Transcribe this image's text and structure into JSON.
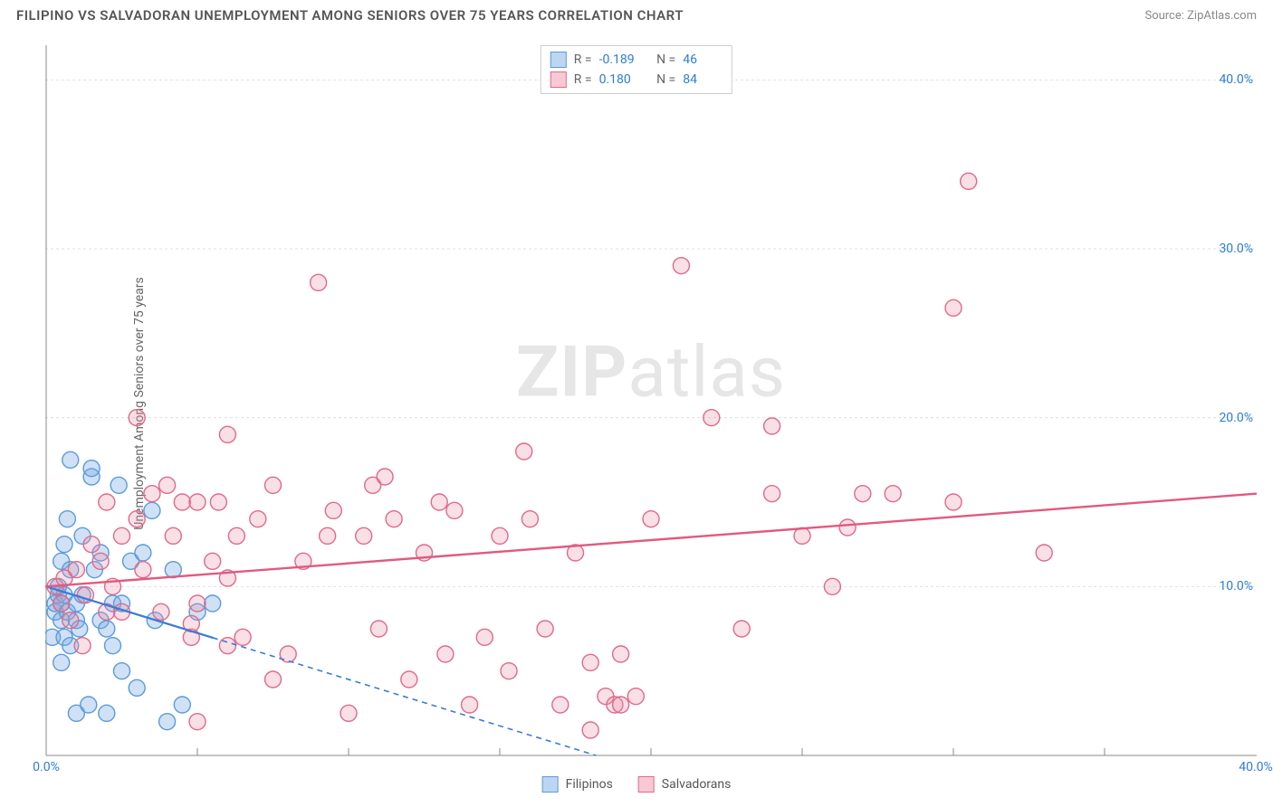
{
  "header": {
    "title": "FILIPINO VS SALVADORAN UNEMPLOYMENT AMONG SENIORS OVER 75 YEARS CORRELATION CHART",
    "source_prefix": "Source: ",
    "source_name": "ZipAtlas.com"
  },
  "axes": {
    "y_label": "Unemployment Among Seniors over 75 years",
    "x_min": 0,
    "x_max": 40,
    "y_min": 0,
    "y_max": 42,
    "x_ticks": [
      0,
      40
    ],
    "x_tick_labels": [
      "0.0%",
      "40.0%"
    ],
    "x_minor_ticks": [
      5,
      10,
      15,
      20,
      25,
      30,
      35
    ],
    "y_ticks": [
      10,
      20,
      30,
      40
    ],
    "y_tick_labels": [
      "10.0%",
      "20.0%",
      "30.0%",
      "40.0%"
    ],
    "grid_color": "#e0e0e0",
    "axis_color": "#888888",
    "tick_label_color": "#2e7cd6",
    "label_fontsize": 14
  },
  "watermark": {
    "text_bold": "ZIP",
    "text_light": "atlas"
  },
  "stats_legend": {
    "rows": [
      {
        "swatch_fill": "#bcd6f2",
        "swatch_stroke": "#5a9bdc",
        "r_label": "R =",
        "r": "-0.189",
        "n_label": "N =",
        "n": "46"
      },
      {
        "swatch_fill": "#f8c9d4",
        "swatch_stroke": "#e06a8a",
        "r_label": "R =",
        "r": "0.180",
        "n_label": "N =",
        "n": "84"
      }
    ]
  },
  "series_legend": {
    "items": [
      {
        "swatch_fill": "#bcd6f2",
        "swatch_stroke": "#5a9bdc",
        "label": "Filipinos"
      },
      {
        "swatch_fill": "#f8c9d4",
        "swatch_stroke": "#e06a8a",
        "label": "Salvadorans"
      }
    ]
  },
  "chart": {
    "type": "scatter",
    "background_color": "#ffffff",
    "marker_radius": 9,
    "marker_stroke_width": 1.4,
    "series": [
      {
        "name": "Filipinos",
        "fill": "rgba(120,170,225,0.35)",
        "stroke": "#5a9bdc",
        "points": [
          [
            0.2,
            7.0
          ],
          [
            0.3,
            8.5
          ],
          [
            0.3,
            9.0
          ],
          [
            0.4,
            9.5
          ],
          [
            0.4,
            10.0
          ],
          [
            0.5,
            5.5
          ],
          [
            0.5,
            8.0
          ],
          [
            0.5,
            9.0
          ],
          [
            0.5,
            11.5
          ],
          [
            0.6,
            7.0
          ],
          [
            0.6,
            9.5
          ],
          [
            0.6,
            12.5
          ],
          [
            0.7,
            14.0
          ],
          [
            0.7,
            8.5
          ],
          [
            0.8,
            17.5
          ],
          [
            0.8,
            11.0
          ],
          [
            0.8,
            6.5
          ],
          [
            1.0,
            2.5
          ],
          [
            1.0,
            9.0
          ],
          [
            1.0,
            8.0
          ],
          [
            1.1,
            7.5
          ],
          [
            1.2,
            13.0
          ],
          [
            1.2,
            9.5
          ],
          [
            1.4,
            3.0
          ],
          [
            1.5,
            16.5
          ],
          [
            1.5,
            17.0
          ],
          [
            1.6,
            11.0
          ],
          [
            1.8,
            8.0
          ],
          [
            1.8,
            12.0
          ],
          [
            2.0,
            7.5
          ],
          [
            2.2,
            6.5
          ],
          [
            2.2,
            9.0
          ],
          [
            2.4,
            16.0
          ],
          [
            2.5,
            9.0
          ],
          [
            2.5,
            5.0
          ],
          [
            2.8,
            11.5
          ],
          [
            3.0,
            4.0
          ],
          [
            3.2,
            12.0
          ],
          [
            3.5,
            14.5
          ],
          [
            3.6,
            8.0
          ],
          [
            4.0,
            2.0
          ],
          [
            4.2,
            11.0
          ],
          [
            4.5,
            3.0
          ],
          [
            5.0,
            8.5
          ],
          [
            5.5,
            9.0
          ],
          [
            2.0,
            2.5
          ]
        ],
        "trend": {
          "y_at_x0": 10.0,
          "y_at_xmax": -12.0,
          "solid_until_x": 5.5,
          "color": "#3a7bd5",
          "width": 2.2,
          "dash": "6,5"
        }
      },
      {
        "name": "Salvadorans",
        "fill": "rgba(235,140,165,0.28)",
        "stroke": "#e06a8a",
        "points": [
          [
            0.3,
            10.0
          ],
          [
            0.5,
            9.0
          ],
          [
            0.6,
            10.5
          ],
          [
            0.8,
            8.0
          ],
          [
            1.0,
            11.0
          ],
          [
            1.2,
            6.5
          ],
          [
            1.3,
            9.5
          ],
          [
            1.5,
            12.5
          ],
          [
            1.8,
            11.5
          ],
          [
            2.0,
            15.0
          ],
          [
            2.2,
            10.0
          ],
          [
            2.5,
            8.5
          ],
          [
            2.5,
            13.0
          ],
          [
            3.0,
            20.0
          ],
          [
            3.2,
            11.0
          ],
          [
            3.5,
            15.5
          ],
          [
            3.8,
            8.5
          ],
          [
            4.0,
            16.0
          ],
          [
            4.2,
            13.0
          ],
          [
            4.5,
            15.0
          ],
          [
            4.8,
            7.0
          ],
          [
            5.0,
            2.0
          ],
          [
            5.0,
            9.0
          ],
          [
            5.0,
            15.0
          ],
          [
            5.5,
            11.5
          ],
          [
            5.7,
            15.0
          ],
          [
            6.0,
            10.5
          ],
          [
            6.0,
            19.0
          ],
          [
            6.3,
            13.0
          ],
          [
            6.5,
            7.0
          ],
          [
            7.0,
            14.0
          ],
          [
            7.5,
            4.5
          ],
          [
            7.5,
            16.0
          ],
          [
            8.0,
            6.0
          ],
          [
            8.5,
            11.5
          ],
          [
            9.0,
            28.0
          ],
          [
            9.3,
            13.0
          ],
          [
            9.5,
            14.5
          ],
          [
            10.0,
            2.5
          ],
          [
            10.5,
            13.0
          ],
          [
            10.8,
            16.0
          ],
          [
            11.0,
            7.5
          ],
          [
            11.2,
            16.5
          ],
          [
            11.5,
            14.0
          ],
          [
            12.0,
            4.5
          ],
          [
            12.5,
            12.0
          ],
          [
            13.0,
            15.0
          ],
          [
            13.2,
            6.0
          ],
          [
            13.5,
            14.5
          ],
          [
            14.0,
            3.0
          ],
          [
            14.5,
            7.0
          ],
          [
            15.0,
            13.0
          ],
          [
            15.3,
            5.0
          ],
          [
            15.8,
            18.0
          ],
          [
            16.0,
            14.0
          ],
          [
            16.5,
            7.5
          ],
          [
            17.0,
            3.0
          ],
          [
            17.5,
            12.0
          ],
          [
            18.0,
            1.5
          ],
          [
            18.0,
            5.5
          ],
          [
            18.5,
            3.5
          ],
          [
            18.8,
            3.0
          ],
          [
            19.0,
            6.0
          ],
          [
            19.0,
            3.0
          ],
          [
            19.5,
            3.5
          ],
          [
            20.0,
            14.0
          ],
          [
            21.0,
            29.0
          ],
          [
            22.0,
            20.0
          ],
          [
            23.0,
            7.5
          ],
          [
            24.0,
            15.5
          ],
          [
            24.0,
            19.5
          ],
          [
            25.0,
            13.0
          ],
          [
            26.0,
            10.0
          ],
          [
            26.5,
            13.5
          ],
          [
            27.0,
            15.5
          ],
          [
            28.0,
            15.5
          ],
          [
            30.0,
            26.5
          ],
          [
            30.0,
            15.0
          ],
          [
            30.5,
            34.0
          ],
          [
            33.0,
            12.0
          ],
          [
            4.8,
            7.8
          ],
          [
            6.0,
            6.5
          ],
          [
            3.0,
            14.0
          ],
          [
            2.0,
            8.5
          ]
        ],
        "trend": {
          "y_at_x0": 10.0,
          "y_at_xmax": 15.5,
          "solid_until_x": 40,
          "color": "#e05a80",
          "width": 2.4,
          "dash": null
        }
      }
    ]
  }
}
